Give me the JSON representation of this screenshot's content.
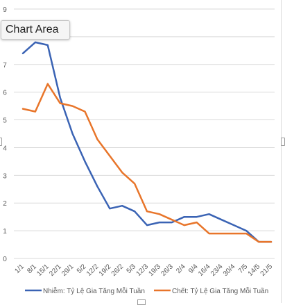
{
  "tooltip": "Chart Area",
  "chart_data": {
    "type": "line",
    "title": "",
    "xlabel": "",
    "ylabel": "",
    "ylim": [
      0,
      9
    ],
    "yticks": [
      0,
      1,
      2,
      3,
      4,
      5,
      6,
      7,
      8,
      9
    ],
    "grid": true,
    "legend_position": "bottom",
    "categories": [
      "1/1",
      "8/1",
      "15/1",
      "22/1",
      "29/1",
      "5/2",
      "12/2",
      "19/2",
      "26/2",
      "5/3",
      "12/3",
      "19/3",
      "26/3",
      "2/4",
      "9/4",
      "16/4",
      "23/4",
      "30/4",
      "7/5",
      "14/5",
      "21/5"
    ],
    "series": [
      {
        "name": "Nhiễm: Tỷ Lệ Gia Tăng  Mỗi Tuần",
        "color": "#3a63b4",
        "values": [
          7.4,
          7.8,
          7.7,
          5.8,
          4.5,
          3.5,
          2.6,
          1.8,
          1.9,
          1.7,
          1.2,
          1.3,
          1.3,
          1.5,
          1.5,
          1.6,
          1.4,
          1.2,
          1.0,
          0.6,
          0.6
        ]
      },
      {
        "name": "Chết: Tỷ Lệ Gia Tăng Mỗi Tuần",
        "color": "#e8752a",
        "values": [
          5.4,
          5.3,
          6.3,
          5.6,
          5.5,
          5.3,
          4.3,
          3.7,
          3.1,
          2.7,
          1.7,
          1.6,
          1.4,
          1.2,
          1.3,
          0.9,
          0.9,
          0.9,
          0.9,
          0.6,
          0.6
        ]
      }
    ]
  }
}
